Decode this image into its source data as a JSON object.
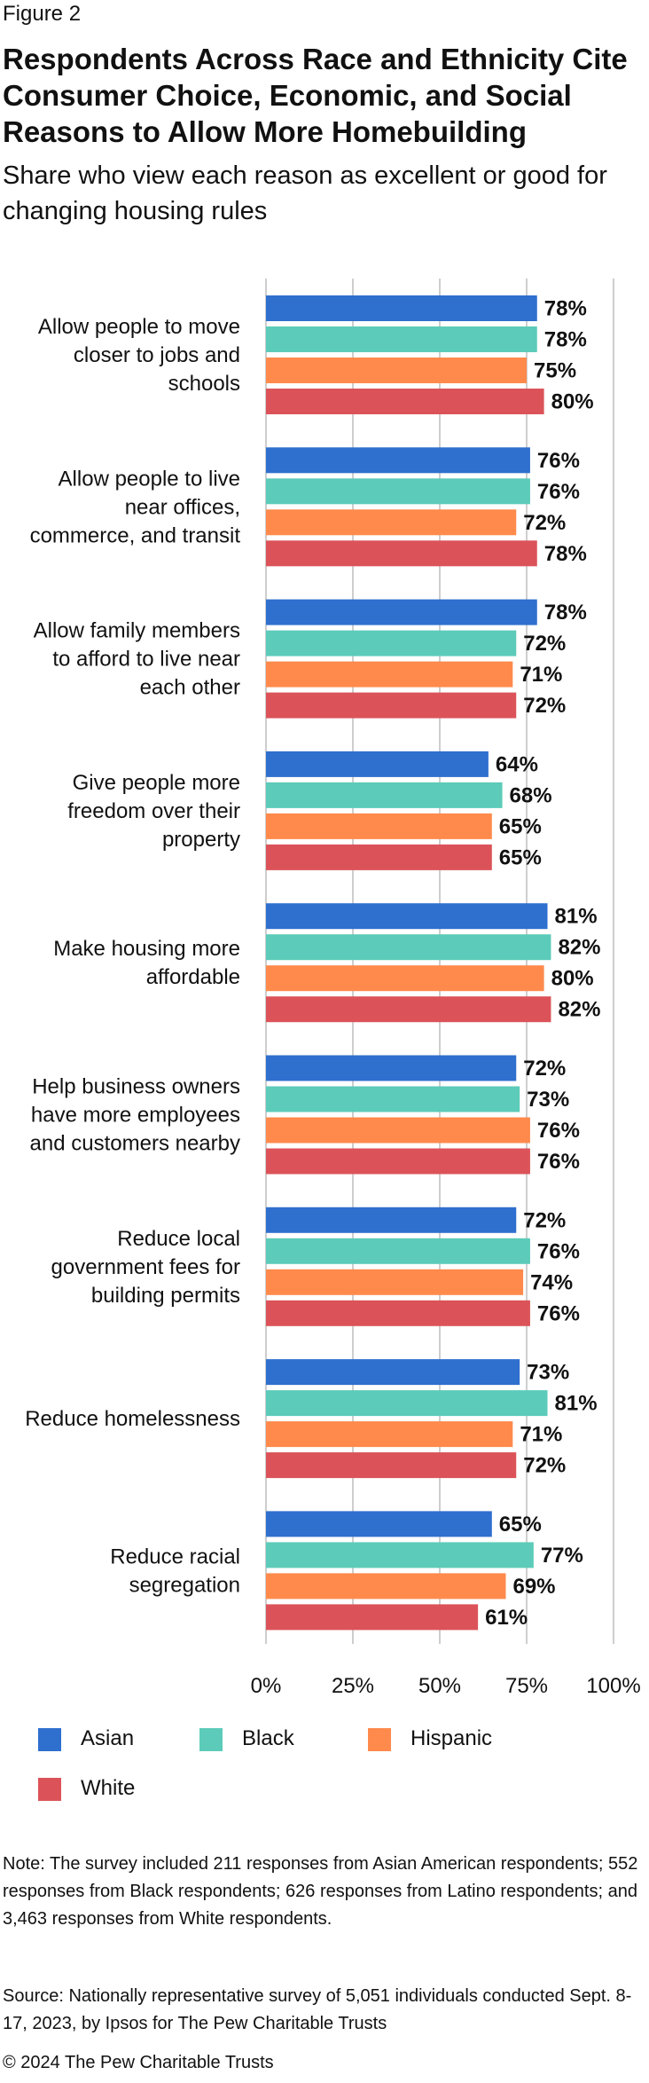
{
  "figure_label": "Figure 2",
  "title": "Respondents Across Race and Ethnicity Cite Consumer Choice, Economic, and Social Reasons to Allow More Homebuilding",
  "subtitle": "Share who view each reason as excellent or good for changing housing rules",
  "colors": {
    "asian": "#2f6fce",
    "black": "#5ccbb9",
    "hispanic": "#ff8a4c",
    "white": "#db5358",
    "gridline": "#bdbdbd",
    "text": "#111111"
  },
  "chart_data": {
    "type": "bar",
    "orientation": "horizontal",
    "categories": [
      [
        "Allow people to move",
        "closer to jobs and",
        "schools"
      ],
      [
        "Allow people to live",
        "near offices,",
        "commerce, and transit"
      ],
      [
        "Allow family members",
        "to afford to live near",
        "each other"
      ],
      [
        "Give people more",
        "freedom over their",
        "property"
      ],
      [
        "Make housing more",
        "affordable"
      ],
      [
        "Help business owners",
        "have more employees",
        "and customers nearby"
      ],
      [
        "Reduce local",
        "government fees for",
        "building permits"
      ],
      [
        "Reduce homelessness"
      ],
      [
        "Reduce racial",
        "segregation"
      ]
    ],
    "series": [
      {
        "name": "Asian",
        "color": "#2f6fce",
        "values": [
          78,
          76,
          78,
          64,
          81,
          72,
          72,
          73,
          65
        ]
      },
      {
        "name": "Black",
        "color": "#5ccbb9",
        "values": [
          78,
          76,
          72,
          68,
          82,
          73,
          76,
          81,
          77
        ]
      },
      {
        "name": "Hispanic",
        "color": "#ff8a4c",
        "values": [
          75,
          72,
          71,
          65,
          80,
          76,
          74,
          71,
          69
        ]
      },
      {
        "name": "White",
        "color": "#db5358",
        "values": [
          80,
          78,
          72,
          65,
          82,
          76,
          76,
          72,
          61
        ]
      }
    ],
    "value_suffix": "%",
    "xlim": [
      0,
      100
    ],
    "xticks": [
      "0%",
      "25%",
      "50%",
      "75%",
      "100%"
    ],
    "grid": true,
    "legend_placement": "bottom"
  },
  "notes": {
    "note": "Note: The survey included 211 responses from Asian American respondents; 552 responses from Black respondents; 626 responses from Latino respondents; and 3,463 responses from White respondents.",
    "source": "Source: Nationally representative survey of 5,051 individuals conducted Sept. 8-17, 2023, by Ipsos for The Pew Charitable Trusts",
    "copyright": "© 2024 The Pew Charitable Trusts"
  }
}
